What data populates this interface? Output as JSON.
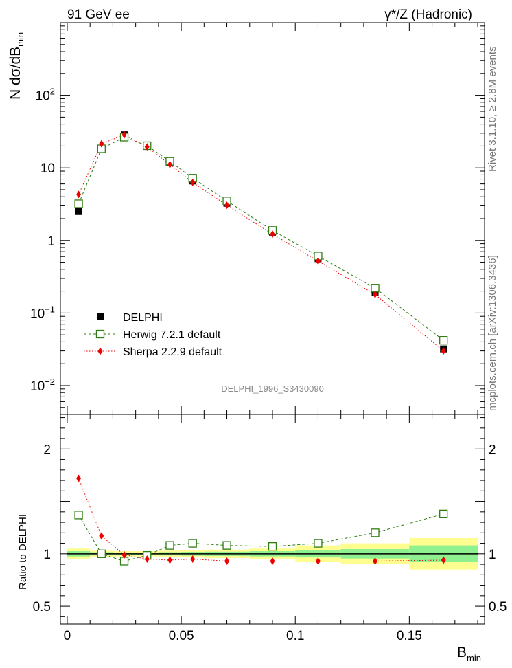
{
  "header": {
    "left": "91 GeV ee",
    "right": "γ*/Z (Hadronic)"
  },
  "side_labels": {
    "top": "Rivet 3.1.10, ≥ 2.8M events",
    "bottom": "mcplots.cern.ch [arXiv:1306.3436]"
  },
  "watermark": "DELPHI_1996_S3430090",
  "colors": {
    "data": "#000000",
    "herwig": "#2e7d10",
    "sherpa": "#ee0000",
    "band_inner": "#8ef08e",
    "band_outer": "#fefe90"
  },
  "chart_data": [
    {
      "type": "scatter",
      "title": "",
      "xlabel": "B_min",
      "ylabel": "N dσ/dB_min",
      "yscale": "log",
      "xlim": [
        -0.003,
        0.183
      ],
      "ylim": [
        0.004,
        1000
      ],
      "y_tick_labels": [
        "10^-2",
        "10^-1",
        "1",
        "10",
        "10^2"
      ],
      "legend": {
        "position": "lower-left",
        "entries": [
          "DELPHI",
          "Herwig 7.2.1 default",
          "Sherpa 2.2.9 default"
        ]
      },
      "x": [
        0.005,
        0.015,
        0.025,
        0.035,
        0.045,
        0.055,
        0.07,
        0.09,
        0.11,
        0.135,
        0.165
      ],
      "series": [
        {
          "name": "DELPHI",
          "style": "filled-square",
          "values": [
            2.5,
            18.5,
            28.5,
            20.5,
            11.7,
            6.6,
            3.25,
            1.3,
            0.56,
            0.19,
            0.032
          ]
        },
        {
          "name": "Herwig 7.2.1 default",
          "style": "open-square-dashed",
          "values": [
            3.2,
            18.3,
            26.5,
            20.2,
            12.3,
            7.2,
            3.5,
            1.37,
            0.61,
            0.22,
            0.042
          ]
        },
        {
          "name": "Sherpa 2.2.9 default",
          "style": "diamond-dotted",
          "values": [
            4.3,
            21.5,
            28.5,
            19.5,
            11.1,
            6.3,
            3.05,
            1.22,
            0.52,
            0.18,
            0.03
          ]
        }
      ]
    },
    {
      "type": "line",
      "title": "",
      "xlabel": "B_min",
      "ylabel": "Ratio to DELPHI",
      "xlim": [
        -0.003,
        0.183
      ],
      "ylim": [
        0.33,
        2.33
      ],
      "x_tick_labels": [
        "0",
        "0.05",
        "0.1",
        "0.15"
      ],
      "y_tick_labels": [
        "0.5",
        "1",
        "2"
      ],
      "x": [
        0.005,
        0.015,
        0.025,
        0.035,
        0.045,
        0.055,
        0.07,
        0.09,
        0.11,
        0.135,
        0.165
      ],
      "series": [
        {
          "name": "Herwig 7.2.1 default",
          "values": [
            1.37,
            1.0,
            0.93,
            0.985,
            1.08,
            1.1,
            1.08,
            1.07,
            1.1,
            1.2,
            1.38
          ]
        },
        {
          "name": "Sherpa 2.2.9 default",
          "values": [
            1.72,
            1.17,
            0.99,
            0.95,
            0.94,
            0.95,
            0.93,
            0.93,
            0.93,
            0.93,
            0.94
          ]
        }
      ],
      "uncertainty_bands": {
        "bins": [
          [
            0.0,
            0.01
          ],
          [
            0.01,
            0.02
          ],
          [
            0.02,
            0.03
          ],
          [
            0.03,
            0.04
          ],
          [
            0.04,
            0.05
          ],
          [
            0.05,
            0.06
          ],
          [
            0.06,
            0.08
          ],
          [
            0.08,
            0.1
          ],
          [
            0.1,
            0.12
          ],
          [
            0.12,
            0.15
          ],
          [
            0.15,
            0.18
          ]
        ],
        "inner": [
          0.025,
          0.015,
          0.012,
          0.012,
          0.015,
          0.018,
          0.02,
          0.025,
          0.035,
          0.045,
          0.08
        ],
        "outer": [
          0.05,
          0.03,
          0.025,
          0.025,
          0.03,
          0.035,
          0.04,
          0.05,
          0.08,
          0.1,
          0.15
        ]
      }
    }
  ]
}
